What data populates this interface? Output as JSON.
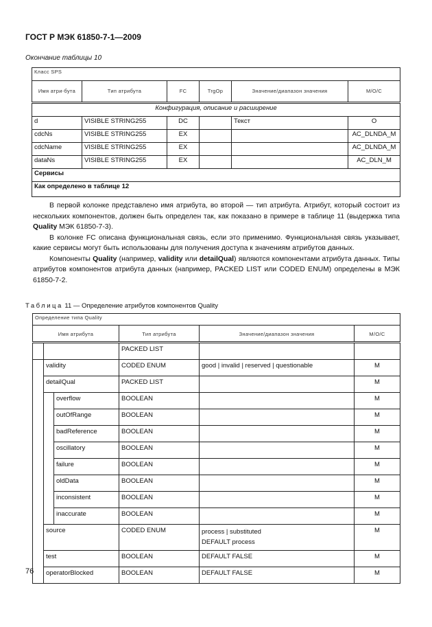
{
  "header": {
    "doc_title": "ГОСТ Р МЭК 61850-7-1—2009"
  },
  "table10": {
    "continuation": "Окончание таблицы 10",
    "class_label": "Класс SPS",
    "columns": [
      "Имя атри-бута",
      "Тип атрибута",
      "FC",
      "TrgOp",
      "Значение/диапазон значения",
      "M/O/C"
    ],
    "section": "Конфигурация, описание и расширение",
    "rows": [
      [
        "d",
        "VISIBLE STRING255",
        "DC",
        "",
        "Текст",
        "O"
      ],
      [
        "cdcNs",
        "VISIBLE STRING255",
        "EX",
        "",
        "",
        "AC_DLNDA_M"
      ],
      [
        "cdcName",
        "VISIBLE STRING255",
        "EX",
        "",
        "",
        "AC_DLNDA_M"
      ],
      [
        "dataNs",
        "VISIBLE STRING255",
        "EX",
        "",
        "",
        "AC_DLN_M"
      ]
    ],
    "services_label": "Сервисы",
    "services_value": "Как определено в таблице 12"
  },
  "text": {
    "p1_a": "В первой колонке представлено имя атрибута, во второй — тип атрибута. Атрибут, который состоит из нескольких компонентов, должен быть определен так, как показано в примере в таблице 11 (выдержка типа ",
    "p1_bold": "Quality",
    "p1_b": " МЭК 61850-7-3).",
    "p2": "В колонке FC описана функциональная связь, если это применимо. Функциональная связь указывает, какие сервисы могут быть использованы для получения доступа к значениям атрибутов данных.",
    "p3_a": "Компоненты ",
    "p3_bold1": "Quality",
    "p3_b": " (например, ",
    "p3_bold2": "validity",
    "p3_c": " или ",
    "p3_bold3": "detailQual",
    "p3_d": ") являются компонентами атрибута данных. Типы атрибутов компонентов атрибута данных (например, PACKED LIST или CODED ENUM) определены в МЭК 61850-7-2."
  },
  "table11": {
    "caption_word": "Таблица",
    "caption_rest": " 11 — Определение атрибутов компонентов Quality",
    "type_label": "Определение типа Quality",
    "columns": [
      "Имя атрибута",
      "Тип атрибута",
      "Значение/диапазон значения",
      "M/O/C"
    ],
    "root": {
      "type": "PACKED LIST"
    },
    "rows": [
      {
        "name": "validity",
        "type": "CODED ENUM",
        "value": "good | invalid | reserved | questionable",
        "moc": "M"
      },
      {
        "name": "detailQual",
        "type": "PACKED LIST",
        "value": "",
        "moc": "M"
      },
      {
        "name": "overflow",
        "type": "BOOLEAN",
        "value": "",
        "moc": "M"
      },
      {
        "name": "outOfRange",
        "type": "BOOLEAN",
        "value": "",
        "moc": "M"
      },
      {
        "name": "badReference",
        "type": "BOOLEAN",
        "value": "",
        "moc": "M"
      },
      {
        "name": "oscillatory",
        "type": "BOOLEAN",
        "value": "",
        "moc": "M"
      },
      {
        "name": "failure",
        "type": "BOOLEAN",
        "value": "",
        "moc": "M"
      },
      {
        "name": "oldData",
        "type": "BOOLEAN",
        "value": "",
        "moc": "M"
      },
      {
        "name": "inconsistent",
        "type": "BOOLEAN",
        "value": "",
        "moc": "M"
      },
      {
        "name": "inaccurate",
        "type": "BOOLEAN",
        "value": "",
        "moc": "M"
      },
      {
        "name": "source",
        "type": "CODED ENUM",
        "value": "process | substituted",
        "value2": "DEFAULT process",
        "moc": "M"
      },
      {
        "name": "test",
        "type": "BOOLEAN",
        "value": "DEFAULT FALSE",
        "moc": "M"
      },
      {
        "name": "operatorBlocked",
        "type": "BOOLEAN",
        "value": "DEFAULT FALSE",
        "moc": "M"
      }
    ]
  },
  "footer": {
    "page_number": "76"
  }
}
